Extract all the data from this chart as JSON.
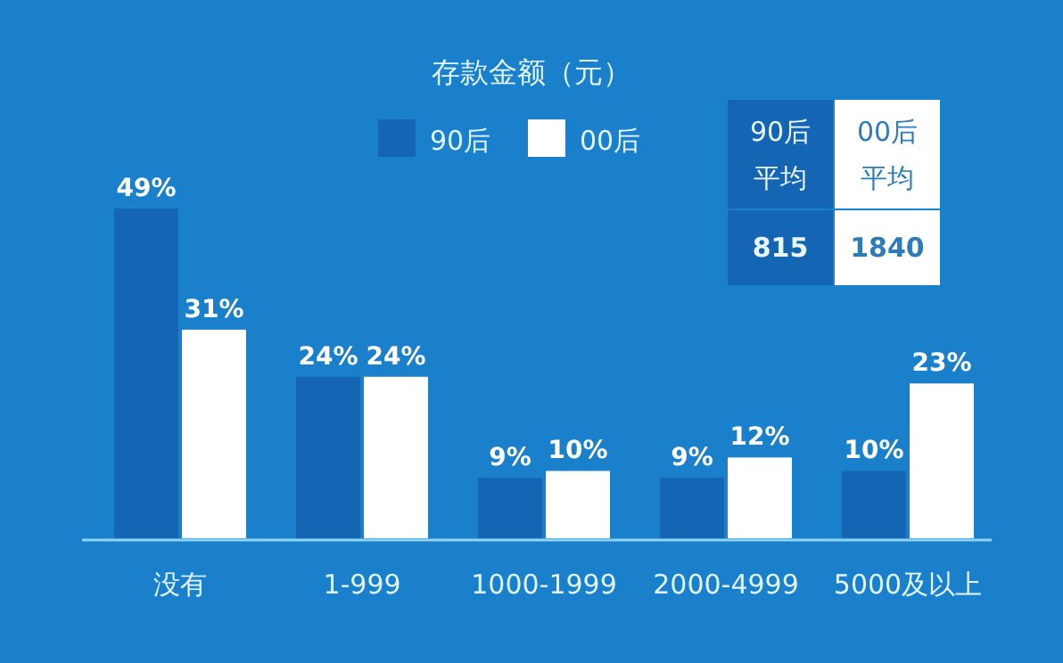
{
  "chart_data": {
    "type": "bar",
    "title": "存款金额（元）",
    "categories": [
      "没有",
      "1-999",
      "1000-1999",
      "2000-4999",
      "5000及以上"
    ],
    "series": [
      {
        "name": "90后",
        "color": "#1565b5",
        "values": [
          49,
          24,
          9,
          9,
          10
        ],
        "value_labels": [
          "49%",
          "24%",
          "9%",
          "9%",
          "10%"
        ]
      },
      {
        "name": "00后",
        "color": "#ffffff",
        "values": [
          31,
          24,
          10,
          12,
          23
        ],
        "value_labels": [
          "31%",
          "24%",
          "10%",
          "12%",
          "23%"
        ]
      }
    ],
    "legend": "top",
    "annotations": [
      "90后平均",
      "00后平均",
      "815",
      "1840"
    ]
  }
}
